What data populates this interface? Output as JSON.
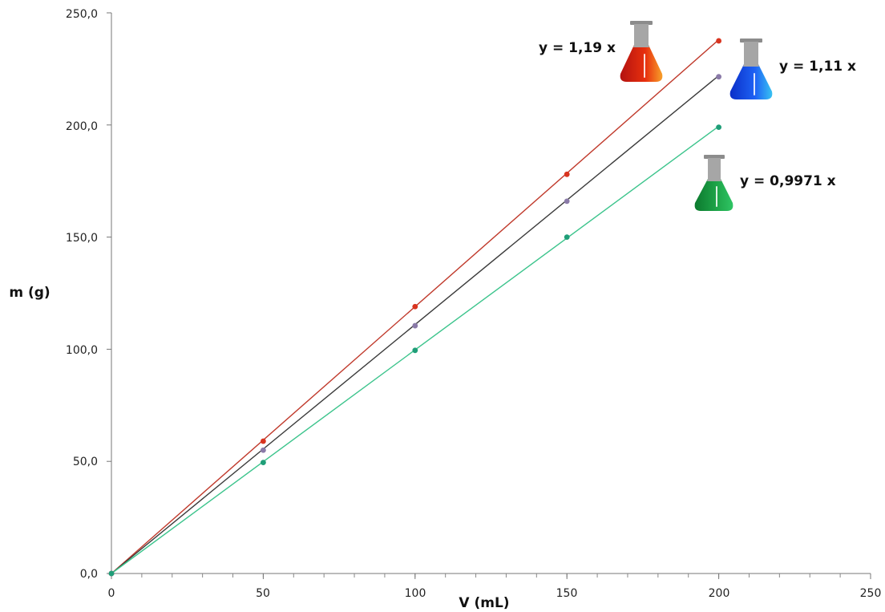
{
  "chart_data": {
    "type": "scatter",
    "xlabel": "V (mL)",
    "ylabel": "m (g)",
    "xlim": [
      0,
      250
    ],
    "ylim": [
      0,
      250
    ],
    "x_ticks": [
      "0",
      "50",
      "100",
      "150",
      "200",
      "250"
    ],
    "y_ticks": [
      "0,0",
      "50,0",
      "100,0",
      "150,0",
      "200,0",
      "250,0"
    ],
    "grid": false,
    "series": [
      {
        "equation": "y = 1,19 x",
        "slope": 1.19,
        "color": "#d9341f",
        "line_color": "#c0392b",
        "flask_color": "red",
        "x": [
          0,
          50,
          100,
          150,
          200
        ],
        "y": [
          0,
          59.0,
          119.0,
          178.0,
          237.5
        ]
      },
      {
        "equation": "y = 1,11 x",
        "slope": 1.11,
        "color": "#8a7aa8",
        "line_color": "#3a3a3a",
        "flask_color": "blue",
        "x": [
          0,
          50,
          100,
          150,
          200
        ],
        "y": [
          0,
          55.0,
          110.5,
          166.0,
          221.5
        ]
      },
      {
        "equation": "y = 0,9971 x",
        "slope": 0.9971,
        "color": "#1f9e78",
        "line_color": "#3cc48c",
        "flask_color": "green",
        "x": [
          0,
          50,
          100,
          150,
          200
        ],
        "y": [
          0,
          49.5,
          99.5,
          150.0,
          199.0
        ]
      }
    ]
  }
}
